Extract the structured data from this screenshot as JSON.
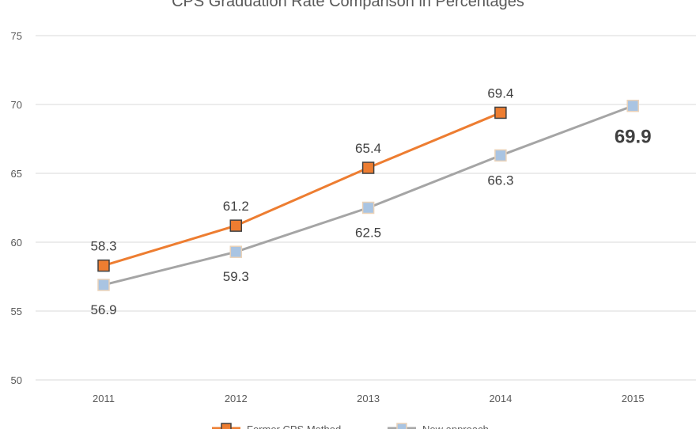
{
  "chart_data": {
    "type": "line",
    "title": "CPS Graduation Rate Comparison in Percentages",
    "categories": [
      "2011",
      "2012",
      "2013",
      "2014",
      "2015"
    ],
    "ylim": [
      50,
      75
    ],
    "yticks": [
      50,
      55,
      60,
      65,
      70,
      75
    ],
    "grid": true,
    "legend": "bottom",
    "series": [
      {
        "name": "Former CPS Method",
        "values": [
          58.3,
          61.2,
          65.4,
          69.4,
          null
        ],
        "color": "#ed7d31",
        "label_position": "above"
      },
      {
        "name": "New approach",
        "values": [
          56.9,
          59.3,
          62.5,
          66.3,
          69.9
        ],
        "color": "#a5a5a5",
        "marker_color": "#a9c4e2",
        "label_position": "below"
      }
    ],
    "highlighted_label": {
      "category": "2015",
      "text": "69.9"
    }
  }
}
